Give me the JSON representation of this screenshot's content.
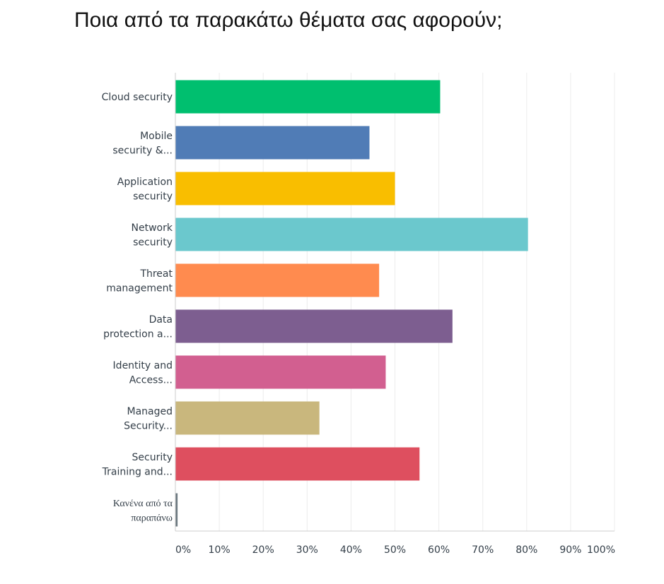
{
  "title": "Ποια από τα παρακάτω θέματα σας αφορούν;",
  "chart_data": {
    "type": "bar",
    "orientation": "horizontal",
    "categories": [
      [
        "Cloud security"
      ],
      [
        "Mobile",
        "security &..."
      ],
      [
        "Application",
        "security"
      ],
      [
        "Network",
        "security"
      ],
      [
        "Threat",
        "management"
      ],
      [
        "Data",
        "protection a..."
      ],
      [
        "Identity and",
        "Access..."
      ],
      [
        "Managed",
        "Security..."
      ],
      [
        "Security",
        "Training and..."
      ],
      [
        "Κανένα από τα",
        "παραπάνω"
      ]
    ],
    "values": [
      60.3,
      44.2,
      50.0,
      80.3,
      46.4,
      63.1,
      47.9,
      32.8,
      55.6,
      0.5
    ],
    "colors": [
      "#00bf6f",
      "#507cb6",
      "#f9be00",
      "#6bc8cd",
      "#ff8b4f",
      "#7d5e90",
      "#d25f90",
      "#c9b77d",
      "#de4f5f",
      "#6b787f"
    ],
    "xlim": [
      0,
      100
    ],
    "xticks": [
      "0%",
      "10%",
      "20%",
      "30%",
      "40%",
      "50%",
      "60%",
      "70%",
      "80%",
      "90%",
      "100%"
    ],
    "grid": true,
    "gridline_color": "#ececec",
    "axis_color": "#cccccc"
  }
}
